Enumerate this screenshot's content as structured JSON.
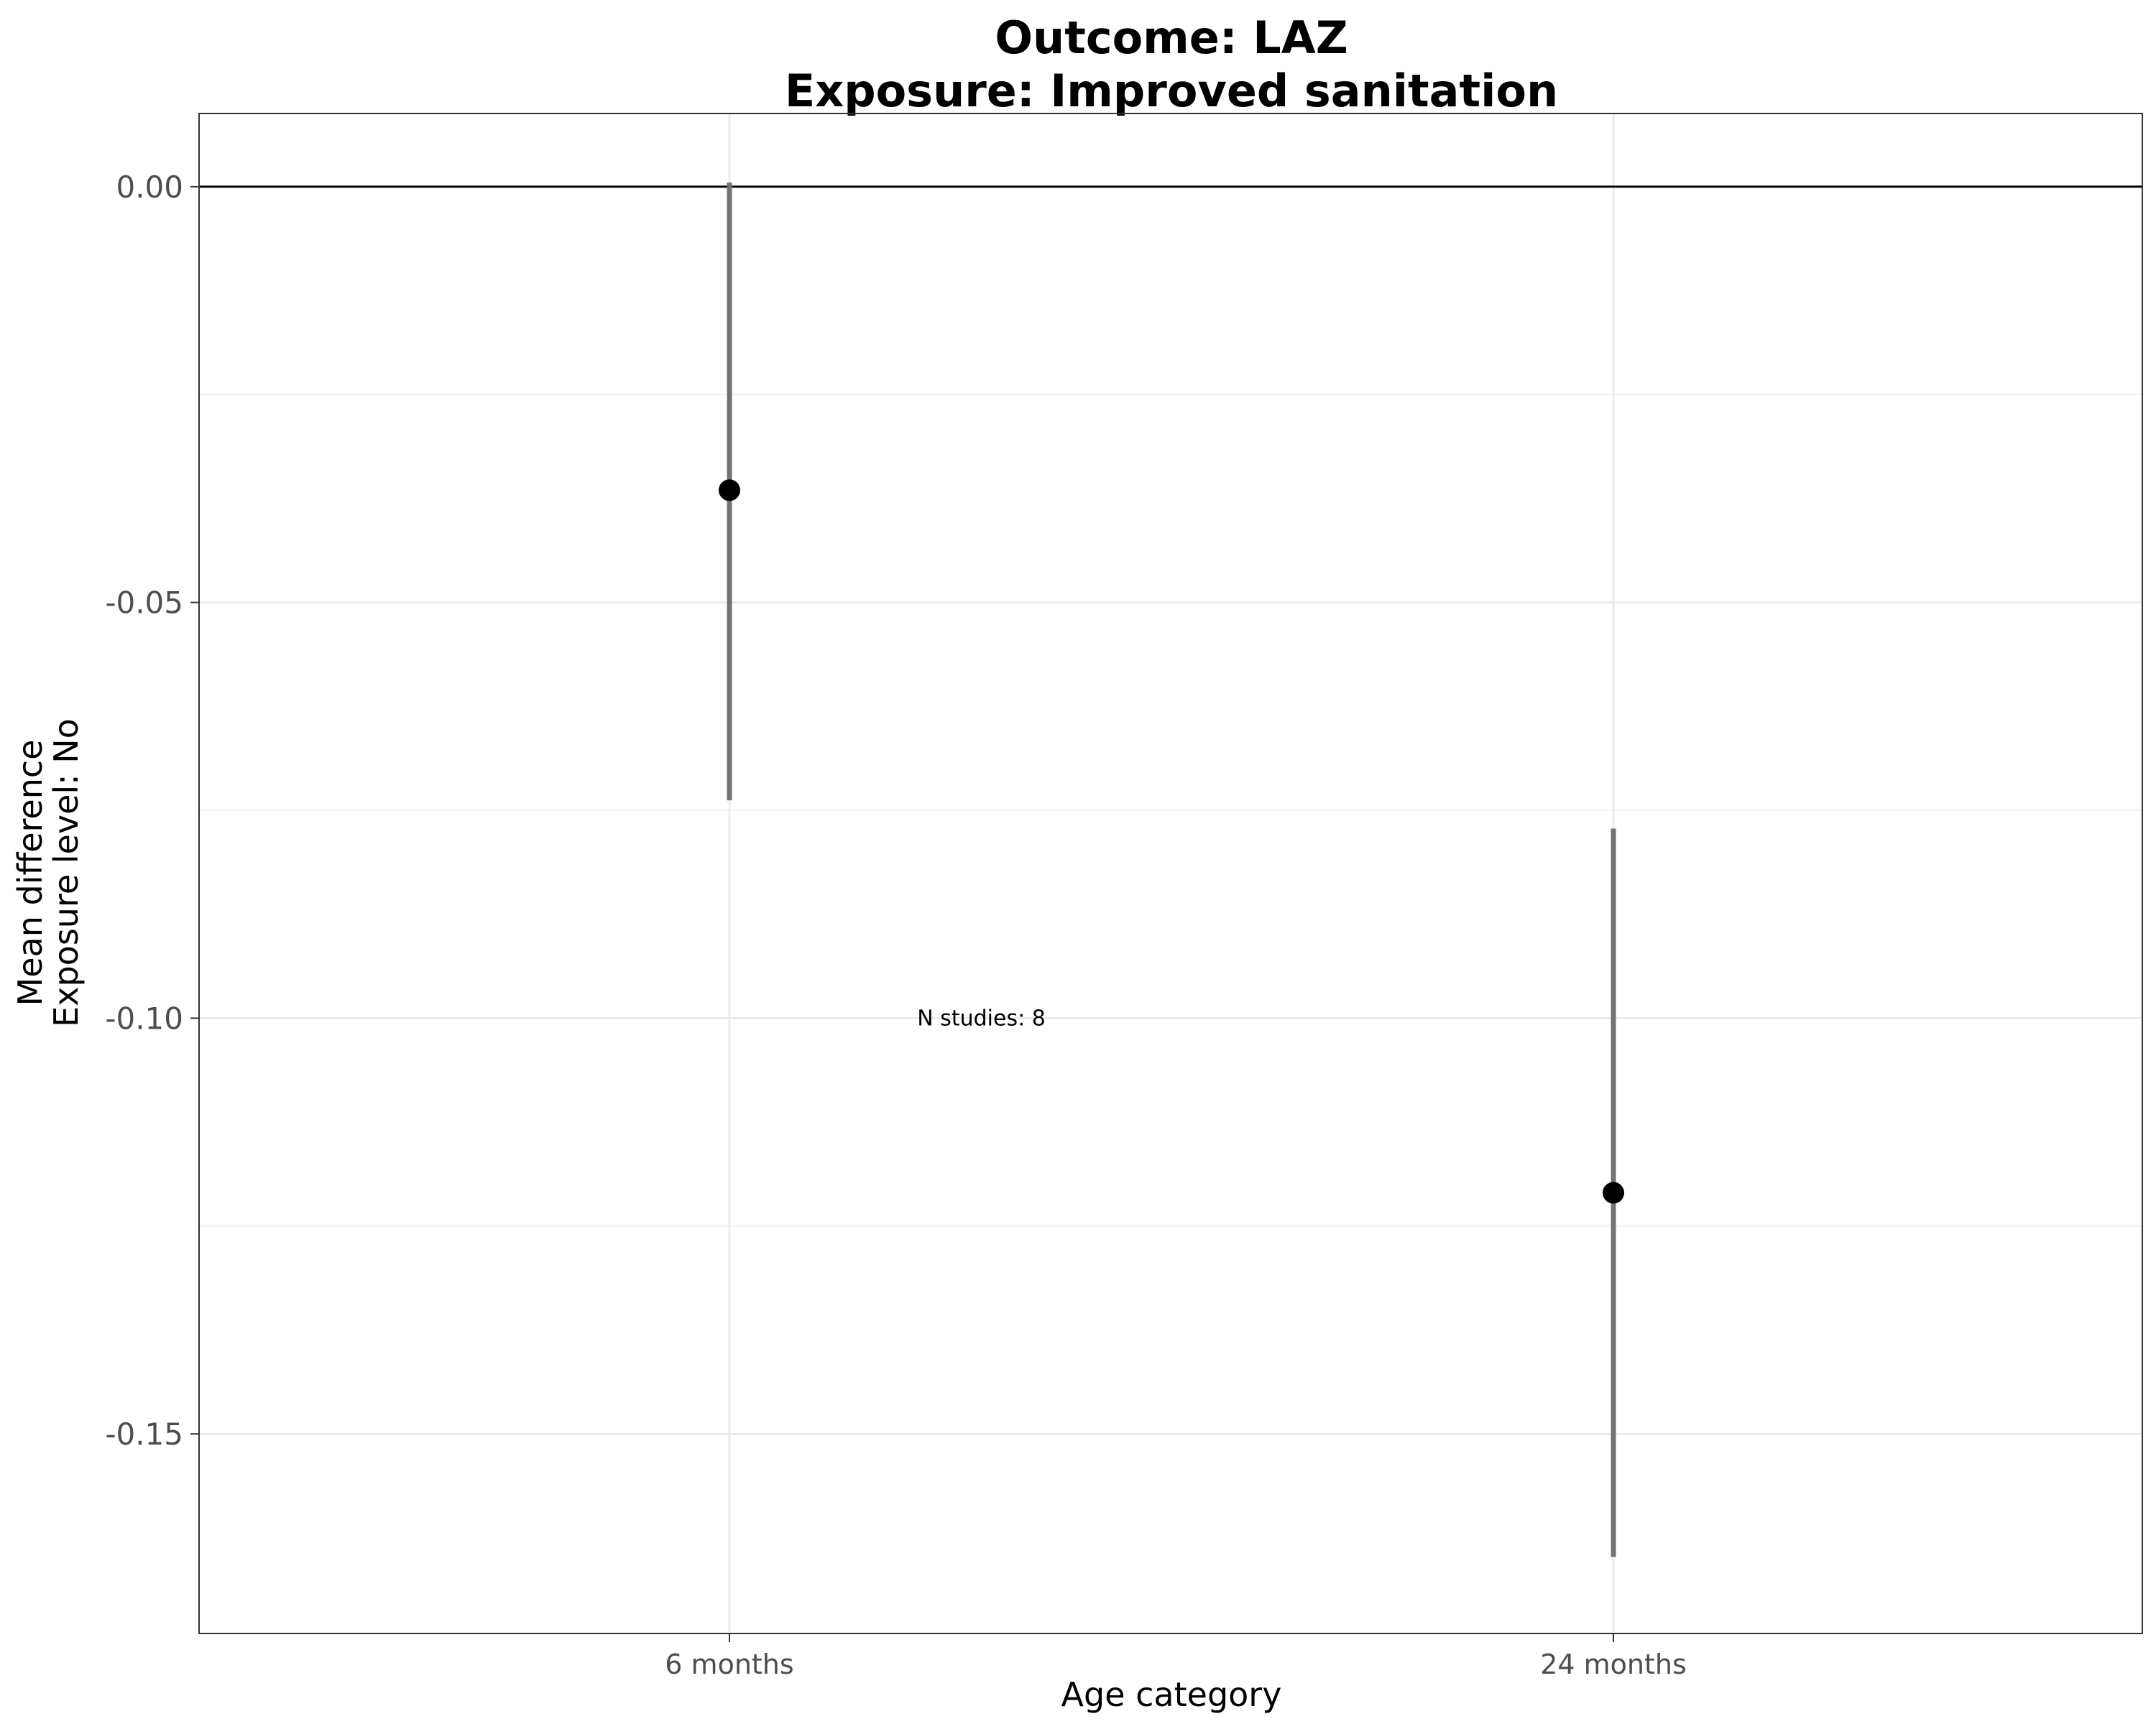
{
  "chart_data": {
    "type": "scatter",
    "title_line1": "Outcome: LAZ",
    "title_line2": "Exposure: Improved sanitation",
    "xlabel": "Age category",
    "ylabel_line1": "Mean difference",
    "ylabel_line2": "Exposure level: No",
    "categories": [
      "6 months",
      "24 months"
    ],
    "points": [
      {
        "category": "6 months",
        "estimate": -0.0365,
        "ci_lower": -0.0738,
        "ci_upper": 0.0005
      },
      {
        "category": "24 months",
        "estimate": -0.121,
        "ci_lower": -0.1648,
        "ci_upper": -0.0772
      }
    ],
    "ylim": [
      -0.174,
      0.0088
    ],
    "yticks": [
      0.0,
      -0.05,
      -0.1,
      -0.15
    ],
    "ytick_labels": [
      "0.00",
      "-0.05",
      "-0.10",
      "-0.15"
    ],
    "reference_line": 0,
    "annotation": {
      "text": "N studies: 8",
      "x_category_position": 1.285,
      "y": -0.1
    },
    "grid": true,
    "legend": "none",
    "colors": {
      "point": "#000000",
      "errorbar": "#737373",
      "grid_major": "#ebebeb",
      "grid_minor": "#f2f2f2",
      "reference": "#000000",
      "panel_border": "#333333"
    }
  }
}
